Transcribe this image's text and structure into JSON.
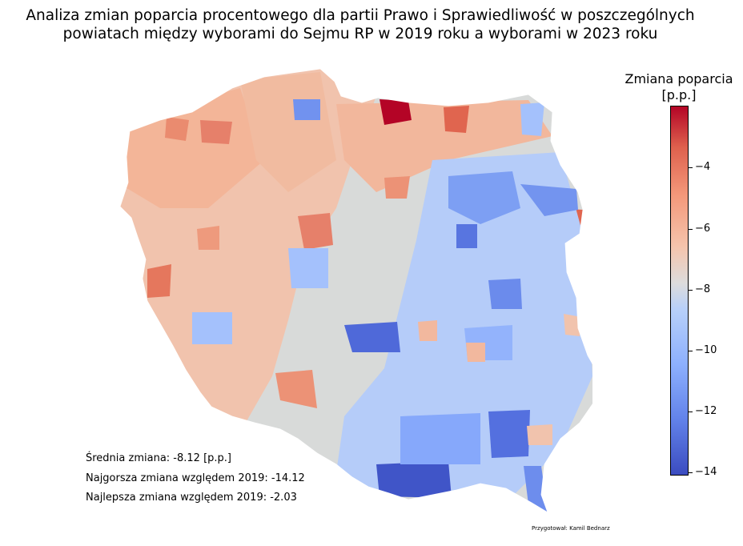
{
  "title_line1": "Analiza zmian poparcia procentowego dla partii Prawo i Sprawiedliwość w poszczególnych",
  "title_line2": "powiatach między wyborami do Sejmu RP w 2019 roku a wyborami w 2023 roku",
  "colorbar": {
    "title_line1": "Zmiana poparcia",
    "title_line2": "[p.p.]",
    "ticks": [
      "−4",
      "−6",
      "−8",
      "−10",
      "−12",
      "−14"
    ],
    "range": [
      -14.12,
      -2.03
    ],
    "colormap": [
      "#3b4cc0",
      "#6282ea",
      "#8db0fe",
      "#b8d0f9",
      "#dddcdc",
      "#f5c4ac",
      "#f4987a",
      "#de604d",
      "#b40426"
    ]
  },
  "stats": {
    "mean": "Średnia zmiana: -8.12 [p.p.]",
    "worst": "Najgorsza zmiana względem 2019: -14.12",
    "best": "Najlepsza zmiana względem 2019: -2.03"
  },
  "credit": "Przygotował: Kamil Bednarz"
}
